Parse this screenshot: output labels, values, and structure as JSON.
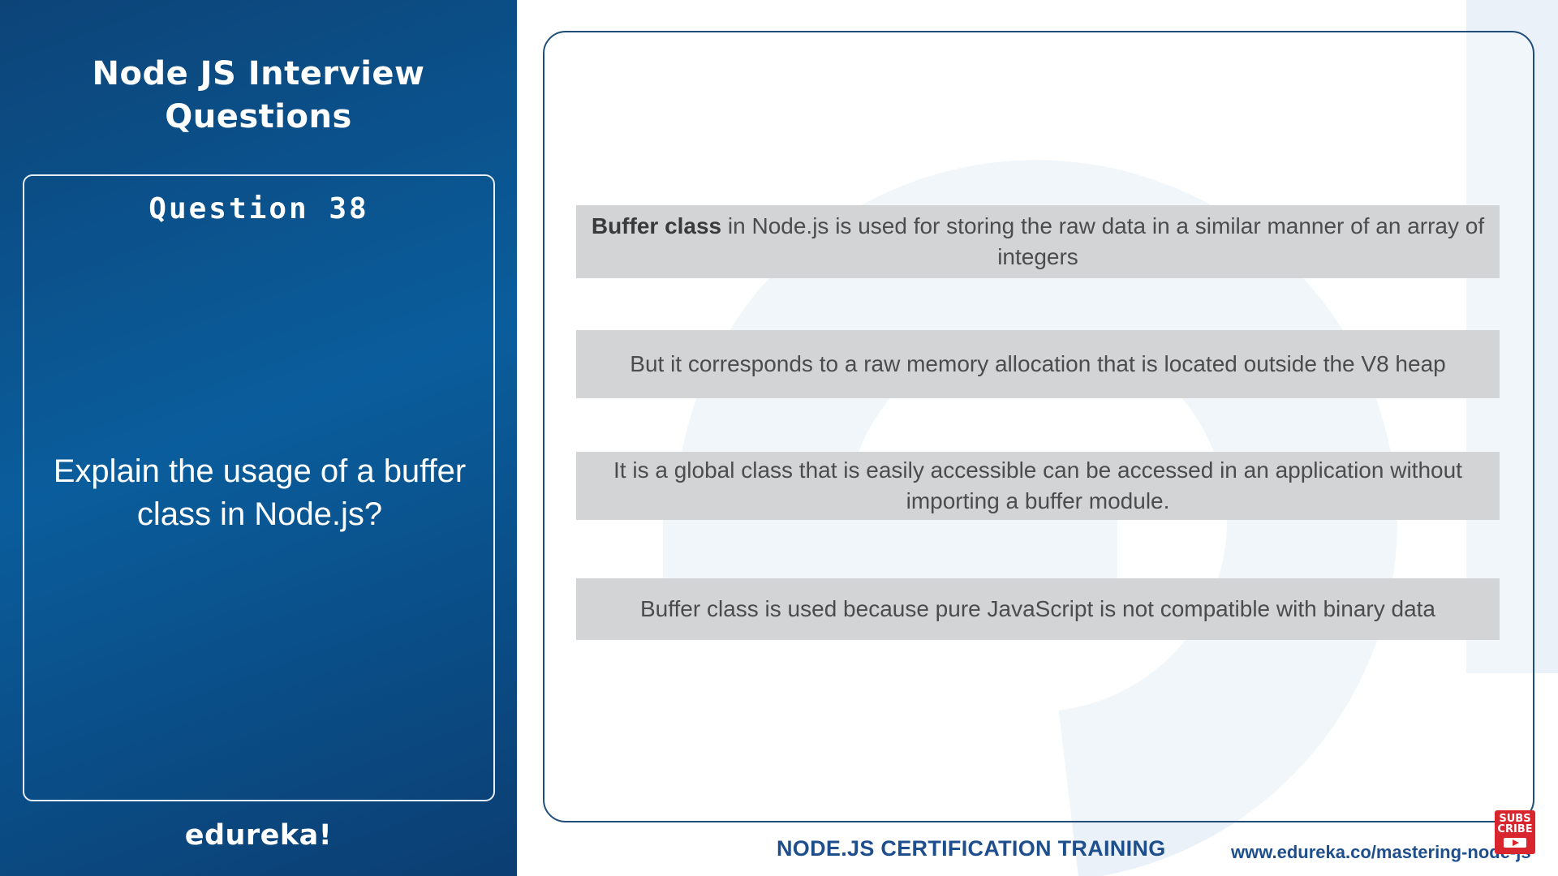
{
  "left_panel": {
    "title_line1": "Node JS Interview",
    "title_line2": "Questions",
    "question_number": "Question 38",
    "question_text": "Explain the usage of a buffer class in Node.js?",
    "brand": "edureka!"
  },
  "content": {
    "bullets": [
      {
        "bold": "Buffer class",
        "text": " in Node.js is used for storing the raw data in a similar manner of an array of integers"
      },
      {
        "bold": "",
        "text": "But it corresponds to a raw memory allocation that is located outside the V8 heap"
      },
      {
        "bold": "",
        "text": "It is a global class that is easily accessible can be accessed in an application without importing a buffer module."
      },
      {
        "bold": "",
        "text": "Buffer class is used because pure JavaScript is not compatible with binary data"
      }
    ]
  },
  "footer": {
    "course": "NODE.JS CERTIFICATION TRAINING",
    "url": "www.edureka.co/mastering-node-js",
    "subscribe_line1": "SUBS",
    "subscribe_line2": "CRIBE"
  },
  "colors": {
    "panel_blue": "#0a5d9c",
    "footer_blue": "#1e4e8c",
    "box_gray": "#d2d4d6",
    "subscribe_red": "#d9262e"
  },
  "icons": {
    "watermark": "edureka-e-watermark-icon",
    "subscribe": "subscribe-play-icon"
  }
}
